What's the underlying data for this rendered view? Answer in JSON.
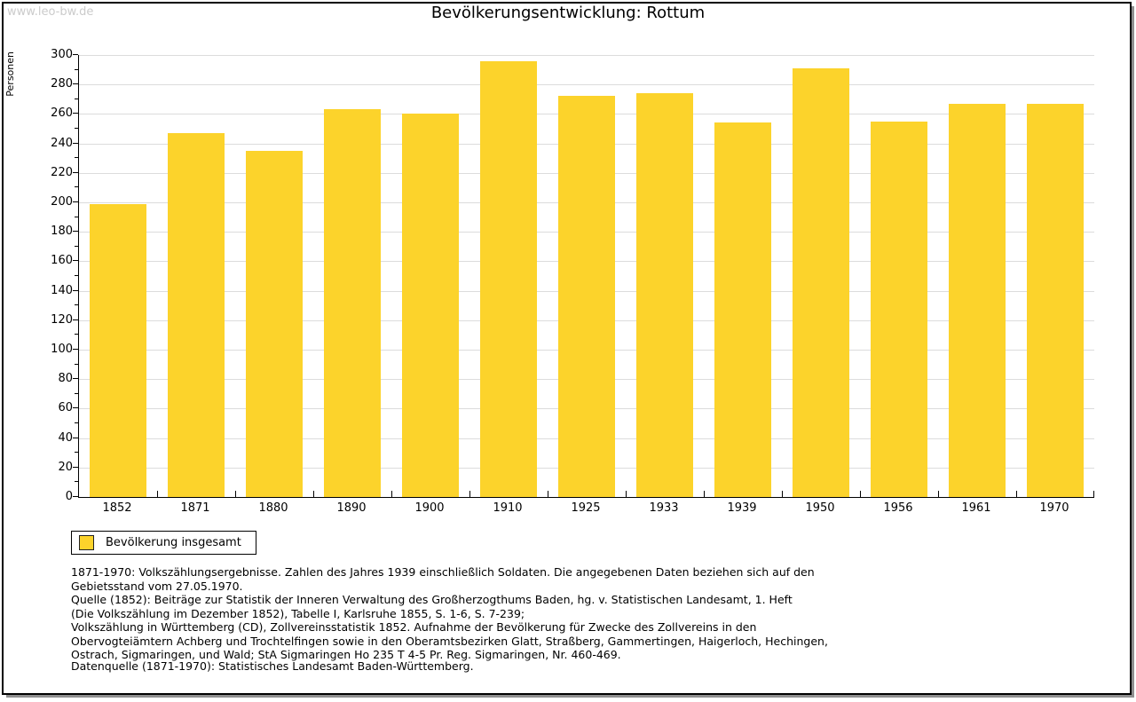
{
  "watermark": "www.leo-bw.de",
  "title": "Bevölkerungsentwicklung: Rottum",
  "chart_data": {
    "type": "bar",
    "title": "Bevölkerungsentwicklung: Rottum",
    "xlabel": "",
    "ylabel": "Personen",
    "ylim": [
      0,
      300
    ],
    "ytick_step": 20,
    "yminor_step": 10,
    "grid": true,
    "bar_color": "#fcd32b",
    "categories": [
      "1852",
      "1871",
      "1880",
      "1890",
      "1900",
      "1910",
      "1925",
      "1933",
      "1939",
      "1950",
      "1956",
      "1961",
      "1970"
    ],
    "series": [
      {
        "name": "Bevölkerung insgesamt",
        "values": [
          199,
          247,
          235,
          263,
          260,
          296,
          272,
          274,
          254,
          291,
          255,
          267,
          267
        ]
      }
    ],
    "legend_position": "bottom-left"
  },
  "legend": {
    "label": "Bevölkerung insgesamt",
    "swatch_color": "#fcd32b"
  },
  "footer": {
    "lines": [
      "1871-1970: Volkszählungsergebnisse. Zahlen des Jahres 1939 einschließlich Soldaten. Die angegebenen Daten beziehen sich auf den",
      "Gebietsstand vom 27.05.1970.",
      "Quelle (1852): Beiträge zur Statistik der Inneren Verwaltung des Großherzogthums Baden, hg. v. Statistischen Landesamt, 1. Heft",
      "(Die Volkszählung im Dezember 1852), Tabelle I, Karlsruhe 1855, S. 1-6, S. 7-239;",
      "Volkszählung in Württemberg (CD), Zollvereinsstatistik 1852. Aufnahme der Bevölkerung für Zwecke des Zollvereins in den",
      "Obervogteiämtern Achberg und Trochtelfingen sowie in den Oberamtsbezirken Glatt, Straßberg, Gammertingen, Haigerloch, Hechingen,",
      "Ostrach, Sigmaringen, und Wald; StA Sigmaringen Ho 235 T 4-5 Pr. Reg. Sigmaringen, Nr. 460-469."
    ],
    "datasource": "Datenquelle (1871-1970): Statistisches Landesamt Baden-Württemberg."
  }
}
